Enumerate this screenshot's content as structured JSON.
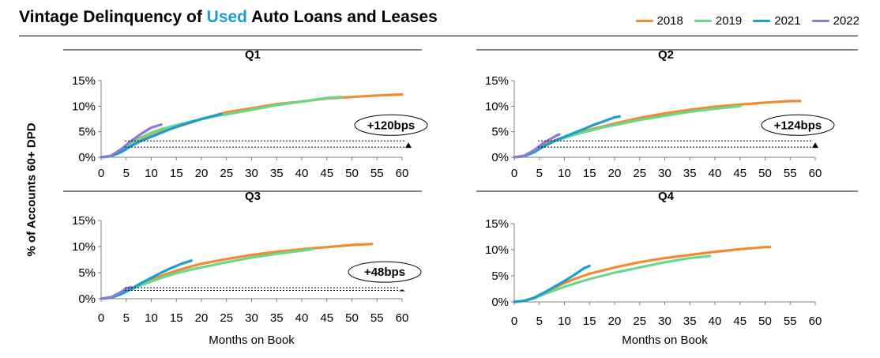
{
  "title": {
    "prefix": "Vintage Delinquency of ",
    "accent": "Used",
    "suffix": " Auto Loans and Leases",
    "accent_color": "#1a9fcf"
  },
  "y_axis_label": "% of Accounts 60+ DPD",
  "x_axis_label": "Months on Book",
  "legend": [
    {
      "name": "2018",
      "color": "#f28a30"
    },
    {
      "name": "2019",
      "color": "#66d98c"
    },
    {
      "name": "2021",
      "color": "#1a9fcf"
    },
    {
      "name": "2022",
      "color": "#8d77d8"
    }
  ],
  "chart_data": [
    {
      "type": "line",
      "title": "Q1",
      "xlabel": "",
      "ylabel": "% of Accounts 60+ DPD",
      "xlim": [
        0,
        60
      ],
      "ylim": [
        0,
        15
      ],
      "xticks": [
        0,
        5,
        10,
        15,
        20,
        25,
        30,
        35,
        40,
        45,
        50,
        55,
        60
      ],
      "yticks": [
        "0%",
        "5%",
        "10%",
        "15%"
      ],
      "annotation": {
        "label": "+120bps",
        "low": 2.0,
        "high": 3.2
      },
      "series": [
        {
          "name": "2018",
          "x": [
            0,
            2,
            4,
            6,
            8,
            10,
            12,
            15,
            18,
            20,
            22,
            25,
            30,
            35,
            40,
            45,
            50,
            55,
            60
          ],
          "y": [
            0,
            0.2,
            1.2,
            2.5,
            3.5,
            4.2,
            5.0,
            5.9,
            6.8,
            7.5,
            8.0,
            8.8,
            9.6,
            10.4,
            10.9,
            11.5,
            11.8,
            12.1,
            12.3
          ]
        },
        {
          "name": "2019",
          "x": [
            0,
            2,
            4,
            6,
            8,
            10,
            12,
            15,
            18,
            20,
            22,
            25,
            30,
            35,
            40,
            45,
            48
          ],
          "y": [
            0,
            0.2,
            1.3,
            2.8,
            3.9,
            4.8,
            5.5,
            6.3,
            7.0,
            7.4,
            7.9,
            8.4,
            9.3,
            10.2,
            10.9,
            11.6,
            11.8
          ]
        },
        {
          "name": "2021",
          "x": [
            0,
            2,
            4,
            6,
            8,
            10,
            12,
            14,
            16,
            18,
            20,
            22,
            24
          ],
          "y": [
            0,
            0.2,
            1.0,
            2.2,
            3.2,
            4.0,
            4.8,
            5.6,
            6.3,
            6.9,
            7.5,
            8.0,
            8.5
          ]
        },
        {
          "name": "2022",
          "x": [
            0,
            2,
            4,
            6,
            8,
            10,
            12
          ],
          "y": [
            0,
            0.3,
            1.6,
            3.2,
            4.6,
            5.8,
            6.4
          ]
        }
      ]
    },
    {
      "type": "line",
      "title": "Q2",
      "xlabel": "",
      "ylabel": "",
      "xlim": [
        0,
        60
      ],
      "ylim": [
        0,
        15
      ],
      "xticks": [
        0,
        5,
        10,
        15,
        20,
        25,
        30,
        35,
        40,
        45,
        50,
        55,
        60
      ],
      "yticks": [
        "0%",
        "5%",
        "10%",
        "15%"
      ],
      "annotation": {
        "label": "+124bps",
        "low": 2.0,
        "high": 3.2
      },
      "series": [
        {
          "name": "2018",
          "x": [
            0,
            2,
            4,
            6,
            8,
            10,
            12,
            15,
            18,
            20,
            25,
            30,
            35,
            40,
            45,
            50,
            55,
            57
          ],
          "y": [
            0,
            0.2,
            1.2,
            2.4,
            3.3,
            4.0,
            4.6,
            5.4,
            6.1,
            6.6,
            7.7,
            8.6,
            9.3,
            9.9,
            10.3,
            10.7,
            11.0,
            11.0
          ]
        },
        {
          "name": "2019",
          "x": [
            0,
            2,
            4,
            6,
            8,
            10,
            12,
            15,
            18,
            20,
            25,
            30,
            35,
            40,
            45
          ],
          "y": [
            0,
            0.2,
            1.1,
            2.2,
            3.1,
            3.8,
            4.4,
            5.2,
            5.9,
            6.3,
            7.3,
            8.1,
            8.9,
            9.5,
            10.0
          ]
        },
        {
          "name": "2021",
          "x": [
            0,
            2,
            4,
            6,
            8,
            10,
            12,
            14,
            16,
            18,
            20,
            21
          ],
          "y": [
            0,
            0.2,
            1.0,
            2.2,
            3.2,
            4.0,
            4.8,
            5.6,
            6.4,
            7.1,
            7.8,
            8.0
          ]
        },
        {
          "name": "2022",
          "x": [
            0,
            2,
            4,
            6,
            8,
            9
          ],
          "y": [
            0,
            0.3,
            1.4,
            2.9,
            4.0,
            4.5
          ]
        }
      ]
    },
    {
      "type": "line",
      "title": "Q3",
      "xlabel": "Months on Book",
      "ylabel": "",
      "xlim": [
        0,
        60
      ],
      "ylim": [
        0,
        15
      ],
      "xticks": [
        0,
        5,
        10,
        15,
        20,
        25,
        30,
        35,
        40,
        45,
        50,
        55,
        60
      ],
      "yticks": [
        "0%",
        "5%",
        "10%",
        "15%"
      ],
      "annotation": {
        "label": "+48bps",
        "low": 1.6,
        "high": 2.1
      },
      "series": [
        {
          "name": "2018",
          "x": [
            0,
            2,
            4,
            6,
            8,
            10,
            12,
            15,
            18,
            20,
            25,
            30,
            35,
            40,
            45,
            50,
            54
          ],
          "y": [
            0,
            0.2,
            0.9,
            1.9,
            2.8,
            3.6,
            4.4,
            5.4,
            6.2,
            6.7,
            7.6,
            8.4,
            9.0,
            9.5,
            9.9,
            10.3,
            10.5
          ]
        },
        {
          "name": "2019",
          "x": [
            0,
            2,
            4,
            6,
            8,
            10,
            12,
            15,
            18,
            20,
            25,
            30,
            35,
            40,
            42
          ],
          "y": [
            0,
            0.2,
            0.9,
            1.8,
            2.6,
            3.3,
            4.0,
            4.9,
            5.6,
            6.0,
            7.0,
            7.9,
            8.6,
            9.2,
            9.5
          ]
        },
        {
          "name": "2021",
          "x": [
            0,
            2,
            4,
            6,
            8,
            10,
            12,
            14,
            16,
            18
          ],
          "y": [
            0,
            0.2,
            0.9,
            1.9,
            3.0,
            4.0,
            5.0,
            5.9,
            6.7,
            7.3
          ]
        },
        {
          "name": "2022",
          "x": [
            0,
            2,
            4,
            5,
            6
          ],
          "y": [
            0,
            0.3,
            1.3,
            2.0,
            2.2
          ]
        }
      ]
    },
    {
      "type": "line",
      "title": "Q4",
      "xlabel": "Months on Book",
      "ylabel": "",
      "xlim": [
        0,
        60
      ],
      "ylim": [
        0,
        15
      ],
      "xticks": [
        0,
        5,
        10,
        15,
        20,
        25,
        30,
        35,
        40,
        45,
        50,
        55,
        60
      ],
      "yticks": [
        "0%",
        "5%",
        "10%",
        "15%"
      ],
      "series": [
        {
          "name": "2018",
          "x": [
            0,
            2,
            4,
            6,
            8,
            10,
            12,
            15,
            18,
            20,
            25,
            30,
            35,
            40,
            45,
            50,
            51
          ],
          "y": [
            0,
            0.2,
            0.8,
            1.8,
            2.7,
            3.6,
            4.4,
            5.4,
            6.1,
            6.6,
            7.6,
            8.4,
            9.0,
            9.6,
            10.1,
            10.5,
            10.5
          ]
        },
        {
          "name": "2019",
          "x": [
            0,
            2,
            4,
            6,
            8,
            10,
            12,
            15,
            18,
            20,
            25,
            30,
            35,
            39
          ],
          "y": [
            0,
            0.2,
            0.7,
            1.5,
            2.2,
            2.9,
            3.5,
            4.4,
            5.1,
            5.6,
            6.6,
            7.6,
            8.4,
            8.8
          ]
        },
        {
          "name": "2021",
          "x": [
            0,
            2,
            4,
            6,
            8,
            10,
            12,
            14,
            15
          ],
          "y": [
            0,
            0.2,
            0.8,
            1.8,
            2.9,
            4.0,
            5.2,
            6.5,
            6.9
          ]
        }
      ]
    }
  ]
}
